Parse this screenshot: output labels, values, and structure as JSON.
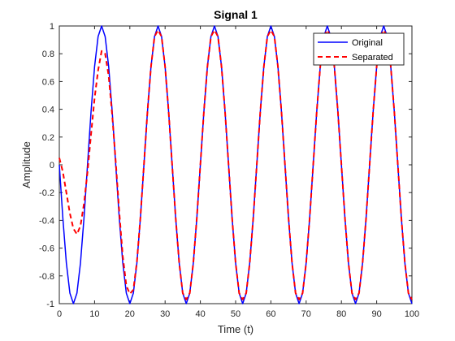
{
  "chart_data": {
    "type": "line",
    "title": "Signal 1",
    "xlabel": "Time (t)",
    "ylabel": "Amplitude",
    "xlim": [
      0,
      100
    ],
    "ylim": [
      -1,
      1
    ],
    "xticks": [
      0,
      10,
      20,
      30,
      40,
      50,
      60,
      70,
      80,
      90,
      100
    ],
    "yticks": [
      -1,
      -0.8,
      -0.6,
      -0.4,
      -0.2,
      0,
      0.2,
      0.4,
      0.6,
      0.8,
      1
    ],
    "xtick_labels": [
      "0",
      "10",
      "20",
      "30",
      "40",
      "50",
      "60",
      "70",
      "80",
      "90",
      "100"
    ],
    "ytick_labels": [
      "-1",
      "-0.8",
      "-0.6",
      "-0.4",
      "-0.2",
      "0",
      "0.2",
      "0.4",
      "0.6",
      "0.8",
      "1"
    ],
    "grid": false,
    "legend_position": "top-right",
    "x": [
      0,
      1,
      2,
      3,
      4,
      5,
      6,
      7,
      8,
      9,
      10,
      11,
      12,
      13,
      14,
      15,
      16,
      17,
      18,
      19,
      20,
      21,
      22,
      23,
      24,
      25,
      26,
      27,
      28,
      29,
      30,
      31,
      32,
      33,
      34,
      35,
      36,
      37,
      38,
      39,
      40,
      41,
      42,
      43,
      44,
      45,
      46,
      47,
      48,
      49,
      50,
      51,
      52,
      53,
      54,
      55,
      56,
      57,
      58,
      59,
      60,
      61,
      62,
      63,
      64,
      65,
      66,
      67,
      68,
      69,
      70,
      71,
      72,
      73,
      74,
      75,
      76,
      77,
      78,
      79,
      80,
      81,
      82,
      83,
      84,
      85,
      86,
      87,
      88,
      89,
      90,
      91,
      92,
      93,
      94,
      95,
      96,
      97,
      98,
      99,
      100
    ],
    "series": [
      {
        "name": "Original",
        "color": "#0000ff",
        "style": "solid",
        "values": [
          0,
          -0.383,
          -0.707,
          -0.924,
          -1,
          -0.924,
          -0.707,
          -0.383,
          0,
          0.383,
          0.707,
          0.924,
          1,
          0.924,
          0.707,
          0.383,
          0,
          -0.383,
          -0.707,
          -0.924,
          -1,
          -0.924,
          -0.707,
          -0.383,
          0,
          0.383,
          0.707,
          0.924,
          1,
          0.924,
          0.707,
          0.383,
          0,
          -0.383,
          -0.707,
          -0.924,
          -1,
          -0.924,
          -0.707,
          -0.383,
          0,
          0.383,
          0.707,
          0.924,
          1,
          0.924,
          0.707,
          0.383,
          0,
          -0.383,
          -0.707,
          -0.924,
          -1,
          -0.924,
          -0.707,
          -0.383,
          0,
          0.383,
          0.707,
          0.924,
          1,
          0.924,
          0.707,
          0.383,
          0,
          -0.383,
          -0.707,
          -0.924,
          -1,
          -0.924,
          -0.707,
          -0.383,
          0,
          0.383,
          0.707,
          0.924,
          1,
          0.924,
          0.707,
          0.383,
          0,
          -0.383,
          -0.707,
          -0.924,
          -1,
          -0.924,
          -0.707,
          -0.383,
          0,
          0.383,
          0.707,
          0.924,
          1,
          0.924,
          0.707,
          0.383,
          0,
          -0.383,
          -0.707,
          -0.924,
          -1
        ]
      },
      {
        "name": "Separated",
        "color": "#ff0000",
        "style": "dashed",
        "values": [
          0.05,
          -0.05,
          -0.2,
          -0.35,
          -0.46,
          -0.5,
          -0.44,
          -0.28,
          -0.05,
          0.22,
          0.48,
          0.68,
          0.82,
          0.8,
          0.64,
          0.36,
          0.02,
          -0.34,
          -0.66,
          -0.87,
          -0.93,
          -0.9,
          -0.7,
          -0.38,
          0,
          0.383,
          0.707,
          0.924,
          0.97,
          0.924,
          0.707,
          0.383,
          0,
          -0.383,
          -0.707,
          -0.924,
          -0.97,
          -0.924,
          -0.707,
          -0.383,
          0,
          0.383,
          0.707,
          0.924,
          0.97,
          0.924,
          0.707,
          0.383,
          0,
          -0.383,
          -0.707,
          -0.924,
          -0.97,
          -0.924,
          -0.707,
          -0.383,
          0,
          0.383,
          0.707,
          0.924,
          0.97,
          0.924,
          0.707,
          0.383,
          0,
          -0.383,
          -0.707,
          -0.924,
          -0.97,
          -0.924,
          -0.707,
          -0.383,
          0,
          0.383,
          0.707,
          0.924,
          0.97,
          0.924,
          0.707,
          0.383,
          0,
          -0.383,
          -0.707,
          -0.924,
          -0.97,
          -0.924,
          -0.707,
          -0.383,
          0,
          0.383,
          0.707,
          0.924,
          0.97,
          0.924,
          0.707,
          0.383,
          0,
          -0.383,
          -0.707,
          -0.924,
          -0.97
        ]
      }
    ]
  }
}
